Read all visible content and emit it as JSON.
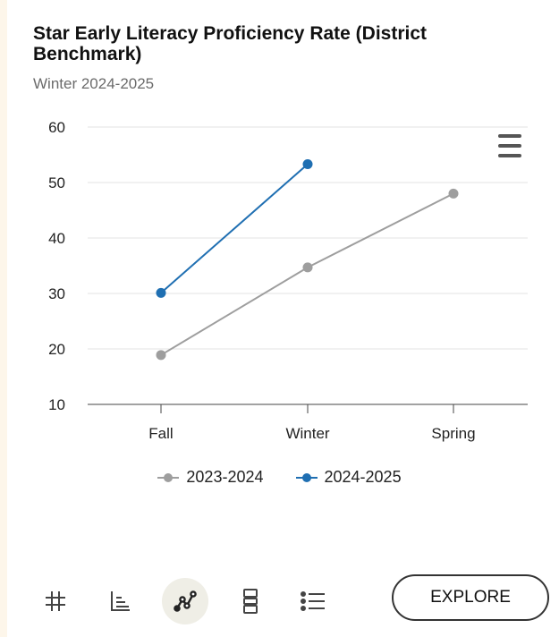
{
  "header": {
    "title": "Star Early Literacy Proficiency Rate (District Benchmark)",
    "subtitle": "Winter 2024-2025"
  },
  "menu": {
    "icon": "hamburger-menu-icon"
  },
  "chart_data": {
    "type": "line",
    "categories": [
      "Fall",
      "Winter",
      "Spring"
    ],
    "ylim": [
      10,
      60
    ],
    "yticks": [
      10,
      20,
      30,
      40,
      50,
      60
    ],
    "grid": true,
    "legend": "bottom",
    "series": [
      {
        "name": "2023-2024",
        "color": "#9e9e9e",
        "values": [
          18.9,
          34.7,
          48.0
        ]
      },
      {
        "name": "2024-2025",
        "color": "#1f6fb2",
        "values": [
          30.1,
          53.3,
          null
        ]
      }
    ]
  },
  "toolbar": {
    "icons": [
      "hash-icon",
      "bar-chart-icon",
      "line-chart-icon",
      "card-layout-icon",
      "list-icon"
    ],
    "active": "line-chart-icon",
    "explore_label": "EXPLORE"
  }
}
